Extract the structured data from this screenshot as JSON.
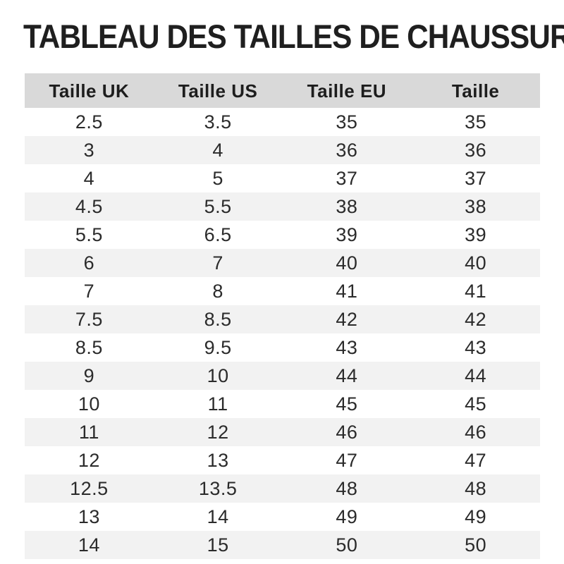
{
  "page": {
    "title": "TABLEAU DES TAILLES DE CHAUSSURES"
  },
  "colors": {
    "header_bg": "#d9d9d9",
    "stripe_bg": "#f2f2f2",
    "title_text": "#1f1f1f",
    "cell_text": "#2b2b2b"
  },
  "chart_data": {
    "type": "table",
    "title": "TABLEAU DES TAILLES DE CHAUSSURES",
    "columns": [
      "Taille UK",
      "Taille US",
      "Taille EU",
      "Taille"
    ],
    "rows": [
      [
        "2.5",
        "3.5",
        "35",
        "35"
      ],
      [
        "3",
        "4",
        "36",
        "36"
      ],
      [
        "4",
        "5",
        "37",
        "37"
      ],
      [
        "4.5",
        "5.5",
        "38",
        "38"
      ],
      [
        "5.5",
        "6.5",
        "39",
        "39"
      ],
      [
        "6",
        "7",
        "40",
        "40"
      ],
      [
        "7",
        "8",
        "41",
        "41"
      ],
      [
        "7.5",
        "8.5",
        "42",
        "42"
      ],
      [
        "8.5",
        "9.5",
        "43",
        "43"
      ],
      [
        "9",
        "10",
        "44",
        "44"
      ],
      [
        "10",
        "11",
        "45",
        "45"
      ],
      [
        "11",
        "12",
        "46",
        "46"
      ],
      [
        "12",
        "13",
        "47",
        "47"
      ],
      [
        "12.5",
        "13.5",
        "48",
        "48"
      ],
      [
        "13",
        "14",
        "49",
        "49"
      ],
      [
        "14",
        "15",
        "50",
        "50"
      ]
    ],
    "layout": {
      "zebra_striping": true,
      "first_data_row_background": "white",
      "column_alignment": "center"
    }
  }
}
